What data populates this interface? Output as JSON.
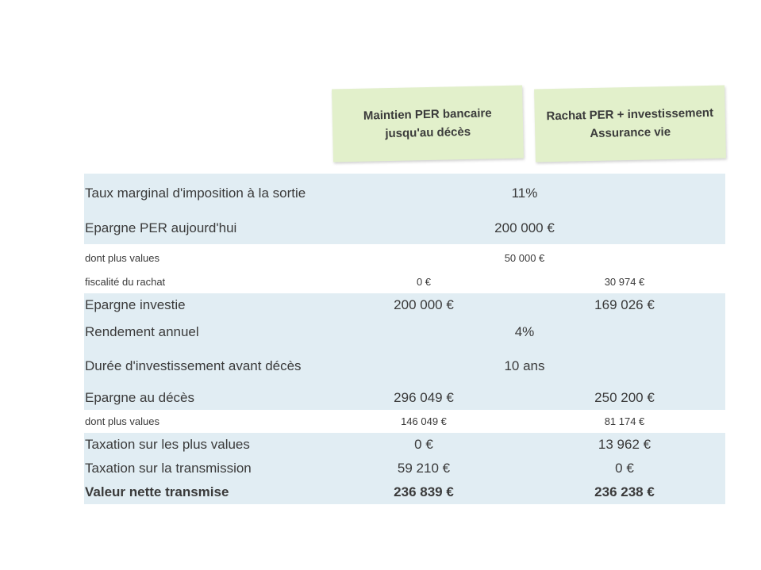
{
  "headers": {
    "col1": "Maintien PER bancaire\njusqu'au décès",
    "col2": "Rachat PER + investissement\nAssurance vie"
  },
  "rows": [
    {
      "label": "Taux marginal d'imposition à la sortie",
      "merged": "11%"
    },
    {
      "label": "Epargne PER aujourd'hui",
      "merged": "200 000 €"
    },
    {
      "label": "dont plus values",
      "merged": "50 000 €"
    },
    {
      "label": "fiscalité du rachat",
      "col1": "0 €",
      "col2": "30 974 €"
    },
    {
      "label": "Epargne investie",
      "col1": "200 000 €",
      "col2": "169 026 €"
    },
    {
      "label": "Rendement annuel",
      "merged": "4%"
    },
    {
      "label": "Durée d'investissement avant décès",
      "merged": "10 ans"
    },
    {
      "label": "Epargne au décès",
      "col1": "296 049 €",
      "col2": "250 200 €"
    },
    {
      "label": "dont plus values",
      "col1": "146 049 €",
      "col2": "81 174 €"
    },
    {
      "label": "Taxation sur les plus values",
      "col1": "0 €",
      "col2": "13 962 €"
    },
    {
      "label": "Taxation sur la transmission",
      "col1": "59 210 €",
      "col2": "0 €"
    },
    {
      "label": "Valeur nette transmise",
      "col1": "236 839 €",
      "col2": "236 238 €"
    }
  ],
  "colors": {
    "header_bg": "#e2f0cb",
    "row_shade": "#e1edf3"
  }
}
